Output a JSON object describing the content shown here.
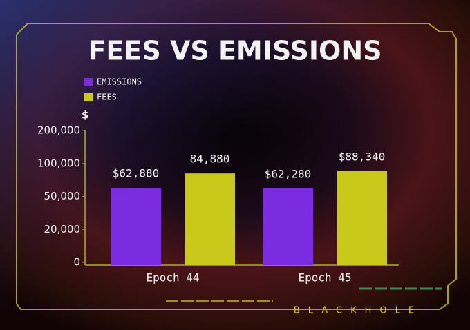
{
  "chart_data": {
    "type": "bar",
    "title": "FEES VS EMISSIONS",
    "y_label": "$",
    "categories": [
      "Epoch 44",
      "Epoch 45"
    ],
    "series": [
      {
        "name": "EMISSIONS",
        "color": "#7b2be0",
        "values": [
          62880,
          62280
        ],
        "value_labels": [
          "$62,880",
          "$62,280"
        ]
      },
      {
        "name": "FEES",
        "color": "#c9c91c",
        "values": [
          84880,
          88340
        ],
        "value_labels": [
          "84,880",
          "$88,340"
        ]
      }
    ],
    "ylim": [
      0,
      200000
    ],
    "yticks": [
      0,
      {
        "value": 20000,
        "label": "20,000"
      },
      {
        "value": 50000,
        "label": "50,000"
      },
      {
        "value": 100000,
        "label": "100,000"
      },
      {
        "value": 200000,
        "label": "200,000"
      }
    ],
    "grid": false
  },
  "footer": {
    "brand": "BLACKHOLE"
  }
}
